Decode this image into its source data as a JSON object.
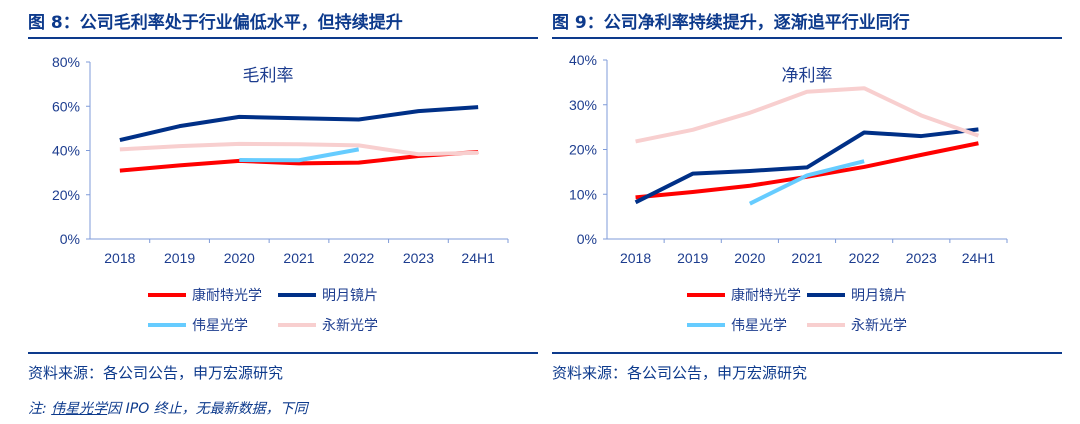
{
  "note": {
    "prefix": "注: ",
    "link": "伟星光学",
    "suffix": "因 IPO 终止，无最新数据，下同"
  },
  "source_label": "资料来源：各公司公告，申万宏源研究",
  "colors": {
    "康耐特光学": "#ff0000",
    "明月镜片": "#003087",
    "伟星光学": "#66ccff",
    "永新光学": "#f8cfcf"
  },
  "chart_data": [
    {
      "type": "line",
      "figure_title": "图 8：公司毛利率处于行业偏低水平，但持续提升",
      "title": "毛利率",
      "categories": [
        "2018",
        "2019",
        "2020",
        "2021",
        "2022",
        "2023",
        "24H1"
      ],
      "ylim": [
        0,
        80
      ],
      "yticks": [
        "0%",
        "20%",
        "40%",
        "60%",
        "80%"
      ],
      "ystep": 20,
      "series": [
        {
          "name": "康耐特光学",
          "values": [
            30.9,
            33.3,
            35.3,
            34.2,
            34.5,
            37.5,
            39.3
          ]
        },
        {
          "name": "明月镜片",
          "values": [
            44.7,
            51,
            55.2,
            54.6,
            54,
            57.8,
            59.6
          ]
        },
        {
          "name": "伟星光学",
          "values": [
            null,
            null,
            35.7,
            35.6,
            40.5,
            null,
            null
          ]
        },
        {
          "name": "永新光学",
          "values": [
            40.5,
            42,
            43,
            42.8,
            42.3,
            38.3,
            39
          ]
        }
      ]
    },
    {
      "type": "line",
      "figure_title": "图 9：公司净利率持续提升，逐渐追平行业同行",
      "title": "净利率",
      "categories": [
        "2018",
        "2019",
        "2020",
        "2021",
        "2022",
        "2023",
        "24H1"
      ],
      "ylim": [
        0,
        40
      ],
      "yticks": [
        "0%",
        "10%",
        "20%",
        "30%",
        "40%"
      ],
      "ystep": 10,
      "series": [
        {
          "name": "康耐特光学",
          "values": [
            9.3,
            10.5,
            11.9,
            13.9,
            16.1,
            18.8,
            21.4
          ]
        },
        {
          "name": "明月镜片",
          "values": [
            8.2,
            14.6,
            15.2,
            16,
            23.8,
            23,
            24.5
          ]
        },
        {
          "name": "伟星光学",
          "values": [
            null,
            null,
            7.9,
            14.2,
            17.4,
            null,
            null
          ]
        },
        {
          "name": "永新光学",
          "values": [
            21.8,
            24.4,
            28.2,
            32.9,
            33.7,
            27.6,
            23.1
          ]
        }
      ]
    }
  ]
}
